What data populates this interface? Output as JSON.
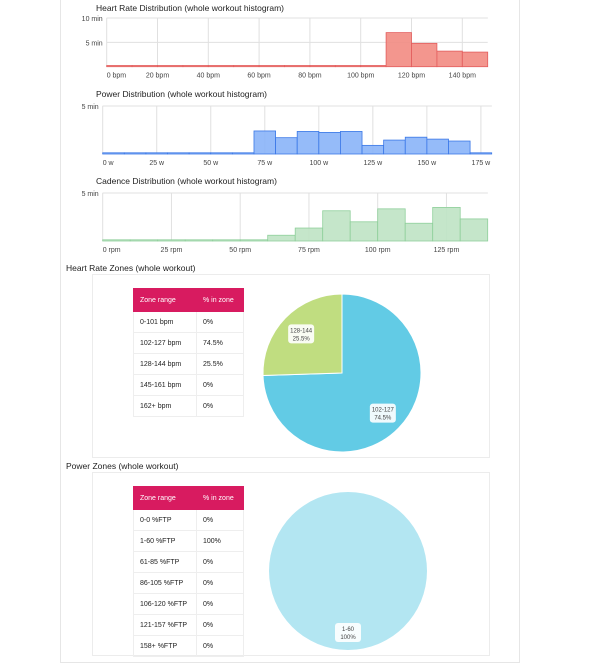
{
  "colors": {
    "hr": "#f28b82",
    "hr_line": "#e35d5d",
    "power": "#8ab4f8",
    "power_line": "#3b78e7",
    "cadence": "#bfe3c4",
    "cadence_line": "#8fcf9b",
    "zone_header": "#d81b60",
    "pie_hr_a": "#62cbe5",
    "pie_hr_b": "#c0dd80",
    "pie_power": "#b3e6f2"
  },
  "chart_data": [
    {
      "type": "bar",
      "title": "Heart Rate Distribution (whole workout histogram)",
      "xlim": [
        0,
        150
      ],
      "ylim": [
        0,
        10
      ],
      "xticks": [
        {
          "v": 0,
          "label": "0 bpm"
        },
        {
          "v": 20,
          "label": "20 bpm"
        },
        {
          "v": 40,
          "label": "40 bpm"
        },
        {
          "v": 60,
          "label": "60 bpm"
        },
        {
          "v": 80,
          "label": "80 bpm"
        },
        {
          "v": 100,
          "label": "100 bpm"
        },
        {
          "v": 120,
          "label": "120 bpm"
        },
        {
          "v": 140,
          "label": "140 bpm"
        }
      ],
      "yticks": [
        {
          "v": 5,
          "label": "5 min"
        },
        {
          "v": 10,
          "label": "10 min"
        }
      ],
      "bin_width": 10,
      "bins": [
        0,
        10,
        20,
        30,
        40,
        50,
        60,
        70,
        80,
        90,
        100,
        110,
        120,
        130,
        140
      ],
      "values": [
        0,
        0,
        0,
        0,
        0,
        0,
        0,
        0,
        0,
        0,
        0,
        7,
        4.8,
        3.2,
        3.0
      ]
    },
    {
      "type": "bar",
      "title": "Power Distribution (whole workout histogram)",
      "xlim": [
        0,
        180
      ],
      "ylim": [
        0,
        5
      ],
      "xticks": [
        {
          "v": 0,
          "label": "0 w"
        },
        {
          "v": 25,
          "label": "25 w"
        },
        {
          "v": 50,
          "label": "50 w"
        },
        {
          "v": 75,
          "label": "75 w"
        },
        {
          "v": 100,
          "label": "100 w"
        },
        {
          "v": 125,
          "label": "125 w"
        },
        {
          "v": 150,
          "label": "150 w"
        },
        {
          "v": 175,
          "label": "175 w"
        }
      ],
      "yticks": [
        {
          "v": 5,
          "label": "5 min"
        }
      ],
      "bin_width": 10,
      "bins": [
        0,
        10,
        20,
        30,
        40,
        50,
        60,
        70,
        80,
        90,
        100,
        110,
        120,
        130,
        140,
        150,
        160,
        170
      ],
      "values": [
        0,
        0,
        0,
        0,
        0,
        0,
        0,
        2.4,
        1.7,
        2.35,
        2.25,
        2.35,
        0.9,
        1.45,
        1.75,
        1.55,
        1.35,
        0.1
      ]
    },
    {
      "type": "bar",
      "title": "Cadence Distribution (whole workout histogram)",
      "xlim": [
        0,
        140
      ],
      "ylim": [
        0,
        5
      ],
      "xticks": [
        {
          "v": 0,
          "label": "0 rpm"
        },
        {
          "v": 25,
          "label": "25 rpm"
        },
        {
          "v": 50,
          "label": "50 rpm"
        },
        {
          "v": 75,
          "label": "75 rpm"
        },
        {
          "v": 100,
          "label": "100 rpm"
        },
        {
          "v": 125,
          "label": "125 rpm"
        }
      ],
      "yticks": [
        {
          "v": 5,
          "label": "5 min"
        }
      ],
      "bin_width": 10,
      "bins": [
        0,
        10,
        20,
        30,
        40,
        50,
        60,
        70,
        80,
        90,
        100,
        110,
        120,
        130
      ],
      "values": [
        0,
        0,
        0,
        0,
        0,
        0,
        0.6,
        1.35,
        3.15,
        2.0,
        3.35,
        1.85,
        3.5,
        2.3
      ]
    },
    {
      "type": "pie",
      "title": "Heart Rate Zones (whole workout)",
      "slices": [
        {
          "label": "102-127",
          "pct_label": "74.5%",
          "value": 74.5
        },
        {
          "label": "128-144",
          "pct_label": "25.5%",
          "value": 25.5
        }
      ]
    },
    {
      "type": "pie",
      "title": "Power Zones (whole workout)",
      "slices": [
        {
          "label": "1-60",
          "pct_label": "100%",
          "value": 100
        }
      ]
    }
  ],
  "hr_zones": {
    "header": [
      "Zone range",
      "% in zone"
    ],
    "rows": [
      [
        "0-101 bpm",
        "0%"
      ],
      [
        "102-127 bpm",
        "74.5%"
      ],
      [
        "128-144 bpm",
        "25.5%"
      ],
      [
        "145-161 bpm",
        "0%"
      ],
      [
        "162+ bpm",
        "0%"
      ]
    ]
  },
  "power_zones": {
    "header": [
      "Zone range",
      "% in zone"
    ],
    "rows": [
      [
        "0-0 %FTP",
        "0%"
      ],
      [
        "1-60 %FTP",
        "100%"
      ],
      [
        "61-85 %FTP",
        "0%"
      ],
      [
        "86-105 %FTP",
        "0%"
      ],
      [
        "106-120 %FTP",
        "0%"
      ],
      [
        "121-157 %FTP",
        "0%"
      ],
      [
        "158+ %FTP",
        "0%"
      ]
    ]
  }
}
